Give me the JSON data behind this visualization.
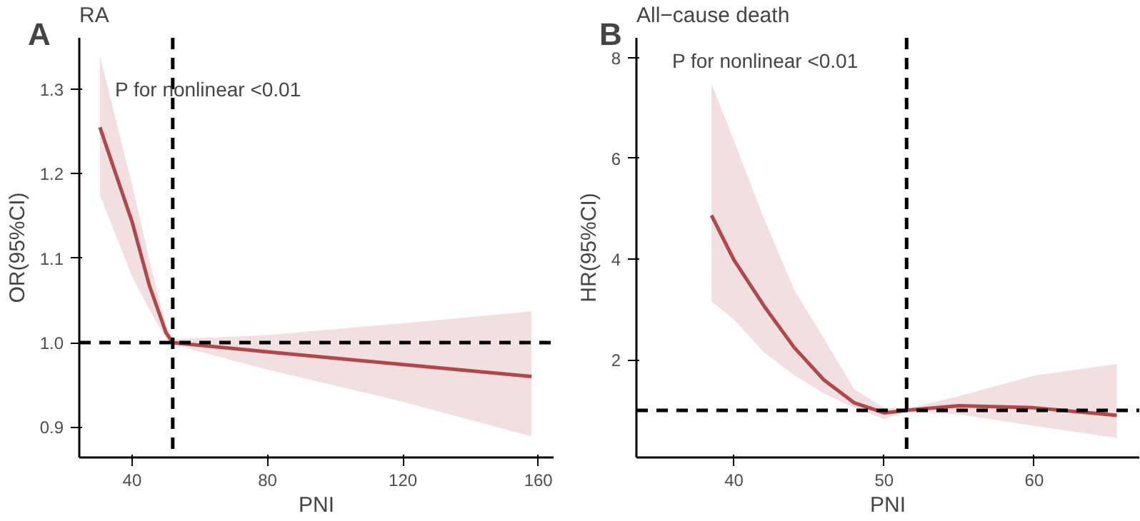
{
  "chart_data": [
    {
      "type": "line",
      "title": "RA",
      "xlabel": "PNI",
      "ylabel": "OR(95%CI)",
      "annotations": [
        "A",
        "P for nonlinear <0.01"
      ],
      "grid": false,
      "line_style": "solid",
      "xlim": [
        24.4,
        164.5
      ],
      "xticks": [
        40,
        80,
        120,
        160
      ],
      "ylim": [
        0.864,
        1.361
      ],
      "yticks": [
        {
          "value": 0.9,
          "label": "0.9"
        },
        {
          "value": 1.0,
          "label": "1.0"
        },
        {
          "value": 1.1,
          "label": "1.1"
        },
        {
          "value": 1.2,
          "label": "1.2"
        },
        {
          "value": 1.3,
          "label": "1.3"
        }
      ],
      "series": [
        {
          "color": "#b0474a",
          "x": [
            30.5,
            40,
            45,
            50,
            52,
            80,
            120,
            158
          ],
          "values": [
            1.255,
            1.143,
            1.069,
            1.012,
            1.0,
            0.989,
            0.974,
            0.96
          ],
          "lower": [
            1.175,
            1.078,
            1.04,
            1.005,
            0.998,
            0.968,
            0.93,
            0.889
          ],
          "upper": [
            1.34,
            1.187,
            1.1,
            1.02,
            1.004,
            1.009,
            1.023,
            1.037
          ]
        }
      ],
      "ref_lines": [
        {
          "axis": "x",
          "value": 52.0,
          "color": "#000000",
          "line_style": "dashed"
        },
        {
          "axis": "y",
          "value": 1.0,
          "color": "#000000",
          "line_style": "dashed"
        }
      ]
    },
    {
      "type": "line",
      "title": "All−cause death",
      "xlabel": "PNI",
      "ylabel": "HR(95%CI)",
      "annotations": [
        "B",
        "P for nonlinear <0.01"
      ],
      "grid": false,
      "line_style": "solid",
      "xlim": [
        33.5,
        67.0
      ],
      "xticks": [
        40,
        50,
        60
      ],
      "ylim": [
        0.064,
        8.39
      ],
      "yticks": [
        2,
        4,
        6,
        8
      ],
      "series": [
        {
          "color": "#b0474a",
          "x": [
            38.5,
            40,
            42,
            44,
            46,
            48,
            50,
            51.5,
            55,
            60,
            65.5
          ],
          "values": [
            4.87,
            3.98,
            3.07,
            2.25,
            1.6,
            1.15,
            0.95,
            1.0,
            1.09,
            1.05,
            0.9
          ],
          "lower": [
            3.16,
            2.8,
            2.15,
            1.7,
            1.33,
            1.05,
            0.83,
            0.97,
            0.92,
            0.69,
            0.45
          ],
          "upper": [
            7.48,
            6.35,
            4.8,
            3.4,
            2.42,
            1.42,
            1.05,
            1.03,
            1.28,
            1.69,
            1.92
          ]
        }
      ],
      "ref_lines": [
        {
          "axis": "x",
          "value": 51.5,
          "color": "#000000",
          "line_style": "dashed"
        },
        {
          "axis": "y",
          "value": 1.0,
          "color": "#000000",
          "line_style": "dashed"
        }
      ]
    }
  ]
}
